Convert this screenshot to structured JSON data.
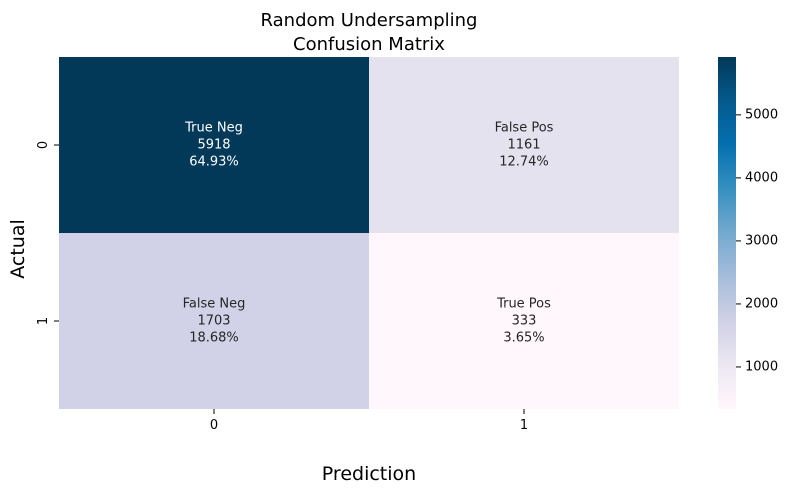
{
  "chart_data": {
    "type": "heatmap",
    "title_lines": [
      "Random Undersampling",
      "Confusion Matrix"
    ],
    "xlabel": "Prediction",
    "ylabel": "Actual",
    "x_ticks": [
      "0",
      "1"
    ],
    "y_ticks": [
      "0",
      "1"
    ],
    "cells": [
      {
        "row": 0,
        "col": 0,
        "label": "True Neg",
        "count": "5918",
        "percent": "64.93%",
        "value": 5918,
        "color": "#023858",
        "text_color": "#ffffff"
      },
      {
        "row": 0,
        "col": 1,
        "label": "False Pos",
        "count": "1161",
        "percent": "12.74%",
        "value": 1161,
        "color": "#e5e2f0",
        "text_color": "#262626"
      },
      {
        "row": 1,
        "col": 0,
        "label": "False Neg",
        "count": "1703",
        "percent": "18.68%",
        "value": 1703,
        "color": "#d1d2e7",
        "text_color": "#262626"
      },
      {
        "row": 1,
        "col": 1,
        "label": "True Pos",
        "count": "333",
        "percent": "3.65%",
        "value": 333,
        "color": "#fff7fb",
        "text_color": "#262626"
      }
    ],
    "colorbar": {
      "colormap": "PuBu",
      "vmin": 333,
      "vmax": 5918,
      "ticks": [
        "1000",
        "2000",
        "3000",
        "4000",
        "5000"
      ],
      "stops": [
        "#fff7fb",
        "#ece7f2",
        "#d0d1e6",
        "#a6bddb",
        "#74a9cf",
        "#3690c0",
        "#0570b0",
        "#045a8d",
        "#023858"
      ]
    }
  }
}
